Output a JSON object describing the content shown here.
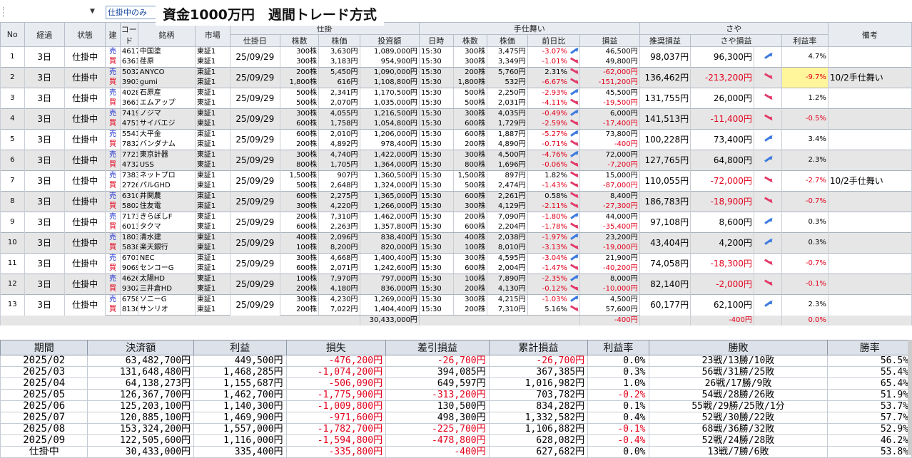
{
  "toolbar": {
    "dropdown_value": "仕掛中のみ",
    "title": "資金1000万円　週間トレード方式"
  },
  "header": {
    "group1": [
      "No",
      "経過",
      "状態",
      "建",
      "コード",
      "銘柄",
      "市場"
    ],
    "entry_group": "仕掛",
    "entry_cols": [
      "仕掛日",
      "株数",
      "株価",
      "投資額"
    ],
    "exit_group": "手仕舞い",
    "exit_cols": [
      "日時",
      "株数",
      "株価",
      "前日比",
      "損益"
    ],
    "saya_group": "さや",
    "saya_cols": [
      "推奨損益",
      "さや損益",
      "利益率"
    ],
    "note": "備考"
  },
  "rows": [
    {
      "no": "1",
      "elapsed": "3日",
      "status": "仕掛中",
      "date": "25/09/29",
      "est": "98,037円",
      "saya": "96,300円",
      "dir": "up",
      "rate": "4.7%",
      "note": "",
      "legs": [
        {
          "side": "売",
          "code": "4617",
          "name": "中国塗",
          "mkt": "東証1",
          "shares": "300株",
          "price": "3,630円",
          "inv": "1,089,000円",
          "time": "15:30",
          "xs": "300株",
          "xp": "3,475円",
          "chg": "-3.07%",
          "cd": "up",
          "pl": "46,500円"
        },
        {
          "side": "買",
          "code": "6361",
          "name": "荏原",
          "mkt": "東証1",
          "shares": "300株",
          "price": "3,183円",
          "inv": "954,900円",
          "time": "15:30",
          "xs": "300株",
          "xp": "3,349円",
          "chg": "-1.01%",
          "cd": "dn",
          "pl": "49,800円"
        }
      ]
    },
    {
      "no": "2",
      "elapsed": "3日",
      "status": "仕掛中",
      "date": "25/09/29",
      "est": "136,462円",
      "saya": "-213,200円",
      "dir": "dn",
      "rate": "-9.7%",
      "note": "10/2手仕舞い",
      "legs": [
        {
          "side": "売",
          "code": "5032",
          "name": "ANYCO",
          "mkt": "東証1",
          "shares": "200株",
          "price": "5,450円",
          "inv": "1,090,000円",
          "time": "15:30",
          "xs": "200株",
          "xp": "5,760円",
          "chg": "2.31%",
          "cd": "dn",
          "pl": "-62,000円"
        },
        {
          "side": "買",
          "code": "3903",
          "name": "gumi",
          "mkt": "東証1",
          "shares": "1,800株",
          "price": "616円",
          "inv": "1,108,800円",
          "time": "15:30",
          "xs": "1,800株",
          "xp": "532円",
          "chg": "-6.67%",
          "cd": "dn",
          "pl": "-151,200円"
        }
      ]
    },
    {
      "no": "3",
      "elapsed": "3日",
      "status": "仕掛中",
      "date": "25/09/29",
      "est": "131,755円",
      "saya": "26,000円",
      "dir": "dn",
      "rate": "1.2%",
      "note": "",
      "legs": [
        {
          "side": "売",
          "code": "4028",
          "name": "石原産",
          "mkt": "東証1",
          "shares": "500株",
          "price": "2,341円",
          "inv": "1,170,500円",
          "time": "15:30",
          "xs": "500株",
          "xp": "2,250円",
          "chg": "-2.93%",
          "cd": "up",
          "pl": "45,500円"
        },
        {
          "side": "買",
          "code": "3661",
          "name": "エムアップ",
          "mkt": "東証1",
          "shares": "500株",
          "price": "2,070円",
          "inv": "1,035,000円",
          "time": "15:30",
          "xs": "500株",
          "xp": "2,031円",
          "chg": "-4.11%",
          "cd": "dn",
          "pl": "-19,500円"
        }
      ]
    },
    {
      "no": "4",
      "elapsed": "3日",
      "status": "仕掛中",
      "date": "25/09/29",
      "est": "141,513円",
      "saya": "-11,400円",
      "dir": "dn",
      "rate": "-0.5%",
      "note": "",
      "legs": [
        {
          "side": "売",
          "code": "7419",
          "name": "ノジマ",
          "mkt": "東証1",
          "shares": "300株",
          "price": "4,055円",
          "inv": "1,216,500円",
          "time": "15:30",
          "xs": "300株",
          "xp": "4,035円",
          "chg": "-0.49%",
          "cd": "up",
          "pl": "6,000円"
        },
        {
          "side": "買",
          "code": "4751",
          "name": "サイバエジ",
          "mkt": "東証1",
          "shares": "600株",
          "price": "1,758円",
          "inv": "1,054,800円",
          "time": "15:30",
          "xs": "600株",
          "xp": "1,729円",
          "chg": "-2.59%",
          "cd": "dn",
          "pl": "-17,400円"
        }
      ]
    },
    {
      "no": "5",
      "elapsed": "3日",
      "status": "仕掛中",
      "date": "25/09/29",
      "est": "100,228円",
      "saya": "73,400円",
      "dir": "up",
      "rate": "3.4%",
      "note": "",
      "legs": [
        {
          "side": "売",
          "code": "5541",
          "name": "大平金",
          "mkt": "東証1",
          "shares": "600株",
          "price": "2,010円",
          "inv": "1,206,000円",
          "time": "15:30",
          "xs": "600株",
          "xp": "1,887円",
          "chg": "-5.27%",
          "cd": "up",
          "pl": "73,800円"
        },
        {
          "side": "買",
          "code": "7832",
          "name": "バンダナム",
          "mkt": "東証1",
          "shares": "200株",
          "price": "4,892円",
          "inv": "978,400円",
          "time": "15:30",
          "xs": "200株",
          "xp": "4,890円",
          "chg": "-0.71%",
          "cd": "dn",
          "pl": "-400円"
        }
      ]
    },
    {
      "no": "6",
      "elapsed": "3日",
      "status": "仕掛中",
      "date": "25/09/29",
      "est": "127,765円",
      "saya": "64,800円",
      "dir": "up",
      "rate": "2.3%",
      "note": "",
      "legs": [
        {
          "side": "売",
          "code": "7721",
          "name": "東京計器",
          "mkt": "東証1",
          "shares": "300株",
          "price": "4,740円",
          "inv": "1,422,000円",
          "time": "15:30",
          "xs": "300株",
          "xp": "4,500円",
          "chg": "-4.76%",
          "cd": "up",
          "pl": "72,000円"
        },
        {
          "side": "買",
          "code": "4732",
          "name": "USS",
          "mkt": "東証1",
          "shares": "800株",
          "price": "1,705円",
          "inv": "1,364,000円",
          "time": "15:30",
          "xs": "800株",
          "xp": "1,696円",
          "chg": "-0.06%",
          "cd": "dn",
          "pl": "-7,200円"
        }
      ]
    },
    {
      "no": "7",
      "elapsed": "3日",
      "status": "仕掛中",
      "date": "25/09/29",
      "est": "110,055円",
      "saya": "-72,000円",
      "dir": "dn",
      "rate": "-2.7%",
      "note": "10/2手仕舞い",
      "legs": [
        {
          "side": "売",
          "code": "7383",
          "name": "ネットプロ",
          "mkt": "東証1",
          "shares": "1,500株",
          "price": "907円",
          "inv": "1,360,500円",
          "time": "15:30",
          "xs": "1,500株",
          "xp": "897円",
          "chg": "1.82%",
          "cd": "dn",
          "pl": "15,000円"
        },
        {
          "side": "買",
          "code": "2726",
          "name": "パルGHD",
          "mkt": "東証1",
          "shares": "500株",
          "price": "2,648円",
          "inv": "1,324,000円",
          "time": "15:30",
          "xs": "500株",
          "xp": "2,474円",
          "chg": "-1.43%",
          "cd": "dn",
          "pl": "-87,000円"
        }
      ]
    },
    {
      "no": "8",
      "elapsed": "3日",
      "status": "仕掛中",
      "date": "25/09/29",
      "est": "186,783円",
      "saya": "-18,900円",
      "dir": "dn",
      "rate": "-0.7%",
      "note": "",
      "legs": [
        {
          "side": "売",
          "code": "6310",
          "name": "井関農",
          "mkt": "東証1",
          "shares": "600株",
          "price": "2,275円",
          "inv": "1,365,000円",
          "time": "15:30",
          "xs": "600株",
          "xp": "2,261円",
          "chg": "0.58%",
          "cd": "dn",
          "pl": "8,400円"
        },
        {
          "side": "買",
          "code": "5802",
          "name": "住友電",
          "mkt": "東証1",
          "shares": "300株",
          "price": "4,220円",
          "inv": "1,266,000円",
          "time": "15:30",
          "xs": "300株",
          "xp": "4,129円",
          "chg": "-2.11%",
          "cd": "dn",
          "pl": "-27,300円"
        }
      ]
    },
    {
      "no": "9",
      "elapsed": "3日",
      "status": "仕掛中",
      "date": "25/09/29",
      "est": "97,108円",
      "saya": "8,600円",
      "dir": "up",
      "rate": "0.3%",
      "note": "",
      "legs": [
        {
          "side": "売",
          "code": "7173",
          "name": "きらぼしF",
          "mkt": "東証1",
          "shares": "200株",
          "price": "7,310円",
          "inv": "1,462,000円",
          "time": "15:30",
          "xs": "200株",
          "xp": "7,090円",
          "chg": "-1.80%",
          "cd": "up",
          "pl": "44,000円"
        },
        {
          "side": "買",
          "code": "6013",
          "name": "タクマ",
          "mkt": "東証1",
          "shares": "600株",
          "price": "2,263円",
          "inv": "1,357,800円",
          "time": "15:30",
          "xs": "600株",
          "xp": "2,204円",
          "chg": "-1.78%",
          "cd": "dn",
          "pl": "-35,400円"
        }
      ]
    },
    {
      "no": "10",
      "elapsed": "3日",
      "status": "仕掛中",
      "date": "25/09/29",
      "est": "43,404円",
      "saya": "4,200円",
      "dir": "up",
      "rate": "0.3%",
      "note": "",
      "legs": [
        {
          "side": "売",
          "code": "1803",
          "name": "清水建",
          "mkt": "東証1",
          "shares": "400株",
          "price": "2,096円",
          "inv": "838,400円",
          "time": "15:30",
          "xs": "400株",
          "xp": "2,038円",
          "chg": "-1.97%",
          "cd": "up",
          "pl": "23,200円"
        },
        {
          "side": "買",
          "code": "5838",
          "name": "楽天銀行",
          "mkt": "東証1",
          "shares": "100株",
          "price": "8,200円",
          "inv": "820,000円",
          "time": "15:30",
          "xs": "100株",
          "xp": "8,010円",
          "chg": "-3.13%",
          "cd": "dn",
          "pl": "-19,000円"
        }
      ]
    },
    {
      "no": "11",
      "elapsed": "3日",
      "status": "仕掛中",
      "date": "25/09/29",
      "est": "74,058円",
      "saya": "-18,300円",
      "dir": "dn",
      "rate": "-0.7%",
      "note": "",
      "legs": [
        {
          "side": "売",
          "code": "6701",
          "name": "NEC",
          "mkt": "東証1",
          "shares": "300株",
          "price": "4,668円",
          "inv": "1,400,400円",
          "time": "15:30",
          "xs": "300株",
          "xp": "4,595円",
          "chg": "-3.04%",
          "cd": "up",
          "pl": "21,900円"
        },
        {
          "side": "買",
          "code": "9069",
          "name": "センコーG",
          "mkt": "東証1",
          "shares": "600株",
          "price": "2,071円",
          "inv": "1,242,600円",
          "time": "15:30",
          "xs": "600株",
          "xp": "2,004円",
          "chg": "-1.47%",
          "cd": "dn",
          "pl": "-40,200円"
        }
      ]
    },
    {
      "no": "12",
      "elapsed": "3日",
      "status": "仕掛中",
      "date": "25/09/29",
      "est": "82,140円",
      "saya": "-2,000円",
      "dir": "dn",
      "rate": "-0.1%",
      "note": "",
      "legs": [
        {
          "side": "売",
          "code": "4626",
          "name": "太陽HD",
          "mkt": "東証1",
          "shares": "100株",
          "price": "7,970円",
          "inv": "797,000円",
          "time": "15:30",
          "xs": "100株",
          "xp": "7,890円",
          "chg": "-2.35%",
          "cd": "up",
          "pl": "8,000円"
        },
        {
          "side": "買",
          "code": "9302",
          "name": "三井倉HD",
          "mkt": "東証1",
          "shares": "200株",
          "price": "4,180円",
          "inv": "836,000円",
          "time": "15:30",
          "xs": "200株",
          "xp": "4,130円",
          "chg": "-0.12%",
          "cd": "dn",
          "pl": "-10,000円"
        }
      ]
    },
    {
      "no": "13",
      "elapsed": "3日",
      "status": "仕掛中",
      "date": "25/09/29",
      "est": "60,177円",
      "saya": "62,100円",
      "dir": "up",
      "rate": "2.3%",
      "note": "",
      "legs": [
        {
          "side": "売",
          "code": "6758",
          "name": "ソニーG",
          "mkt": "東証1",
          "shares": "300株",
          "price": "4,230円",
          "inv": "1,269,000円",
          "time": "15:30",
          "xs": "300株",
          "xp": "4,215円",
          "chg": "-1.03%",
          "cd": "up",
          "pl": "4,500円"
        },
        {
          "side": "買",
          "code": "8136",
          "name": "サンリオ",
          "mkt": "東証1",
          "shares": "200株",
          "price": "7,022円",
          "inv": "1,404,400円",
          "time": "15:30",
          "xs": "200株",
          "xp": "7,310円",
          "chg": "5.16%",
          "cd": "dn",
          "pl": "57,600円"
        }
      ]
    }
  ],
  "totals": {
    "invest": "30,433,000円",
    "pl": "-400円",
    "saya": "-400円",
    "rate": "0.0%"
  },
  "summary": {
    "headers": [
      "期間",
      "決済額",
      "利益",
      "損失",
      "差引損益",
      "累計損益",
      "利益率",
      "勝敗",
      "勝率"
    ],
    "rows": [
      [
        "2025/02",
        "63,482,700円",
        "449,500円",
        "-476,200円",
        "-26,700円",
        "-26,700円",
        "0.0%",
        "23戦/13勝/10敗",
        "56.5%"
      ],
      [
        "2025/03",
        "131,648,480円",
        "1,468,285円",
        "-1,074,200円",
        "394,085円",
        "367,385円",
        "0.3%",
        "56戦/31勝/25敗",
        "55.4%"
      ],
      [
        "2025/04",
        "64,138,273円",
        "1,155,687円",
        "-506,090円",
        "649,597円",
        "1,016,982円",
        "1.0%",
        "26戦/17勝/9敗",
        "65.4%"
      ],
      [
        "2025/05",
        "126,367,700円",
        "1,462,700円",
        "-1,775,900円",
        "-313,200円",
        "703,782円",
        "-0.2%",
        "54戦/28勝/26敗",
        "51.9%"
      ],
      [
        "2025/06",
        "125,203,100円",
        "1,140,300円",
        "-1,009,800円",
        "130,500円",
        "834,282円",
        "0.1%",
        "55戦/29勝/25敗/1分",
        "53.7%"
      ],
      [
        "2025/07",
        "120,885,100円",
        "1,469,900円",
        "-971,600円",
        "498,300円",
        "1,332,582円",
        "0.4%",
        "52戦/30勝/22敗",
        "57.7%"
      ],
      [
        "2025/08",
        "153,324,200円",
        "1,557,000円",
        "-1,782,700円",
        "-225,700円",
        "1,106,882円",
        "-0.1%",
        "68戦/36勝/32敗",
        "52.9%"
      ],
      [
        "2025/09",
        "122,505,600円",
        "1,116,000円",
        "-1,594,800円",
        "-478,800円",
        "628,082円",
        "-0.4%",
        "52戦/24勝/28敗",
        "46.2%"
      ],
      [
        "仕掛中",
        "30,433,000円",
        "335,400円",
        "-335,800円",
        "-400円",
        "627,682円",
        "0.0%",
        "13戦/7勝/6敗",
        "53.8%"
      ]
    ]
  },
  "colors": {
    "sell": "#1a2ccf",
    "buy": "#e3001b",
    "negative": "#e3001b",
    "highlight": "#fff59a"
  }
}
